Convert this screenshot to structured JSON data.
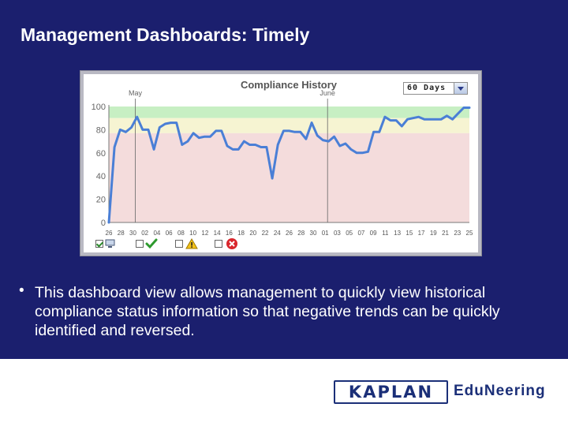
{
  "slide": {
    "title": "Management Dashboards:  Timely",
    "bullet": "•",
    "body": "This dashboard view allows management to quickly view historical compliance status information so that negative trends can be quickly identified and reversed."
  },
  "widget": {
    "title": "Compliance History",
    "range_value": "60 Days"
  },
  "footer": {
    "logo_kaplan": "KAPLAN",
    "logo_edu": "EduNeering"
  },
  "colors": {
    "background": "#1b1f6e",
    "line": "#4a7fd6",
    "band_green": "#c7efc3",
    "band_yellow": "#f6f4d2",
    "band_red": "#f4dcdc"
  },
  "status_icons": [
    "monitor-icon",
    "check-icon",
    "warning-icon",
    "error-icon"
  ],
  "chart_data": {
    "type": "line",
    "title": "Compliance History",
    "ylim": [
      0,
      100
    ],
    "yticks": [
      "0",
      "20",
      "40",
      "60",
      "80",
      "100"
    ],
    "x_tick_labels": [
      "26",
      "28",
      "30",
      "02",
      "04",
      "06",
      "08",
      "10",
      "12",
      "14",
      "16",
      "18",
      "20",
      "22",
      "24",
      "26",
      "28",
      "30",
      "01",
      "03",
      "05",
      "07",
      "09",
      "11",
      "13",
      "15",
      "17",
      "19",
      "21",
      "23",
      "25"
    ],
    "month_markers": [
      {
        "label": "May",
        "x_index": 2
      },
      {
        "label": "June",
        "x_index": 18
      }
    ],
    "bands": [
      {
        "name": "green",
        "from": 90,
        "to": 100
      },
      {
        "name": "yellow",
        "from": 77,
        "to": 90
      },
      {
        "name": "red",
        "from": 0,
        "to": 77
      }
    ],
    "grid": false,
    "series": [
      {
        "values": [
          0,
          65,
          80,
          78,
          82,
          91,
          80,
          80,
          63,
          82,
          85,
          86,
          86,
          67,
          70,
          77,
          73,
          74,
          74,
          79,
          79,
          66,
          63,
          63,
          70,
          67,
          67,
          65,
          65,
          38,
          67,
          79,
          79,
          78,
          78,
          72,
          86,
          75,
          71,
          70,
          74,
          66,
          68,
          63,
          60,
          60,
          61,
          78,
          78,
          91,
          88,
          88,
          83,
          89,
          90,
          91,
          89,
          89,
          89,
          89,
          92,
          89,
          94,
          99,
          99
        ]
      }
    ]
  }
}
